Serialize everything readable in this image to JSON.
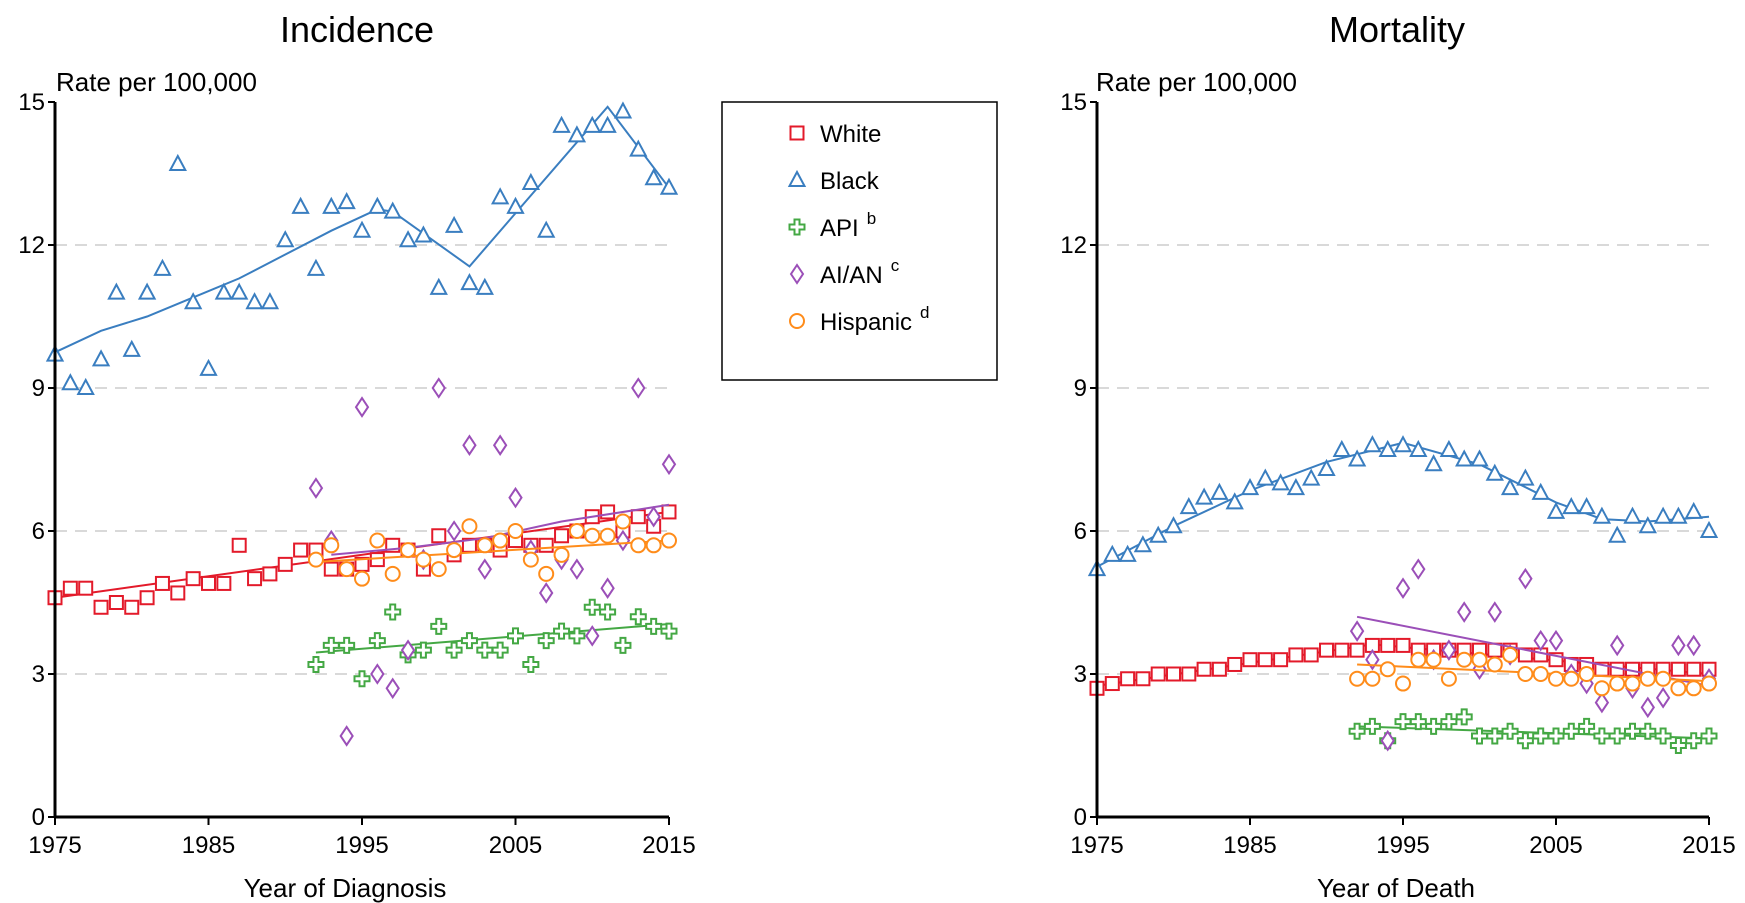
{
  "series_styles": [
    {
      "key": "white",
      "label": "White",
      "sup": "",
      "color": "#e31a2a",
      "marker": "square"
    },
    {
      "key": "black",
      "label": "Black",
      "sup": "",
      "color": "#3a7ec0",
      "marker": "triangle"
    },
    {
      "key": "api",
      "label": "API",
      "sup": "b",
      "color": "#44a844",
      "marker": "plus"
    },
    {
      "key": "aian",
      "label": "AI/AN",
      "sup": "c",
      "color": "#9b4fb8",
      "marker": "diamond"
    },
    {
      "key": "hispanic",
      "label": "Hispanic",
      "sup": "d",
      "color": "#ff8c1a",
      "marker": "circle"
    }
  ],
  "chart_data": [
    {
      "type": "scatter",
      "title": "Incidence",
      "xlabel": "Year of Diagnosis",
      "ylabel": "Rate per 100,000",
      "xlim": [
        1975,
        2015
      ],
      "ylim": [
        0,
        15
      ],
      "xticks": [
        1975,
        1985,
        1995,
        2005,
        2015
      ],
      "yticks": [
        0,
        3,
        6,
        9,
        12,
        15
      ],
      "grid": "horizontal dashed",
      "legend_position": "right",
      "series": [
        {
          "name": "White",
          "key": "white",
          "x": [
            1975,
            1976,
            1977,
            1978,
            1979,
            1980,
            1981,
            1982,
            1983,
            1984,
            1985,
            1986,
            1987,
            1988,
            1989,
            1990,
            1991,
            1992,
            1993,
            1994,
            1995,
            1996,
            1997,
            1998,
            1999,
            2000,
            2001,
            2002,
            2003,
            2004,
            2005,
            2006,
            2007,
            2008,
            2009,
            2010,
            2011,
            2012,
            2013,
            2014,
            2015
          ],
          "y": [
            4.6,
            4.8,
            4.8,
            4.4,
            4.5,
            4.4,
            4.6,
            4.9,
            4.7,
            5.0,
            4.9,
            4.9,
            5.7,
            5.0,
            5.1,
            5.3,
            5.6,
            5.6,
            5.2,
            5.2,
            5.3,
            5.4,
            5.7,
            5.6,
            5.2,
            5.9,
            5.5,
            5.7,
            5.7,
            5.6,
            5.8,
            5.7,
            5.7,
            5.9,
            6.0,
            6.3,
            6.4,
            6.0,
            6.3,
            6.1,
            6.4
          ],
          "trend": {
            "x": [
              1975,
              2015
            ],
            "y": [
              4.6,
              6.4
            ]
          }
        },
        {
          "name": "Black",
          "key": "black",
          "x": [
            1975,
            1976,
            1977,
            1978,
            1979,
            1980,
            1981,
            1982,
            1983,
            1984,
            1985,
            1986,
            1987,
            1988,
            1989,
            1990,
            1991,
            1992,
            1993,
            1994,
            1995,
            1996,
            1997,
            1998,
            1999,
            2000,
            2001,
            2002,
            2003,
            2004,
            2005,
            2006,
            2007,
            2008,
            2009,
            2010,
            2011,
            2012,
            2013,
            2014,
            2015
          ],
          "y": [
            9.7,
            9.1,
            9.0,
            9.6,
            11.0,
            9.8,
            11.0,
            11.5,
            13.7,
            10.8,
            9.4,
            11.0,
            11.0,
            10.8,
            10.8,
            12.1,
            12.8,
            11.5,
            12.8,
            12.9,
            12.3,
            12.8,
            12.7,
            12.1,
            12.2,
            11.1,
            12.4,
            11.2,
            11.1,
            13.0,
            12.8,
            13.3,
            12.3,
            14.5,
            14.3,
            14.5,
            14.5,
            14.8,
            14.0,
            13.4,
            13.2
          ],
          "trend": {
            "x": [
              1975,
              1978,
              1981,
              1984,
              1987,
              1990,
              1993,
              1996,
              1997,
              2002,
              2011,
              2015
            ],
            "y": [
              9.75,
              10.2,
              10.5,
              10.9,
              11.3,
              11.8,
              12.3,
              12.75,
              12.7,
              11.55,
              14.9,
              13.2
            ]
          }
        },
        {
          "name": "API",
          "key": "api",
          "x": [
            1992,
            1993,
            1994,
            1995,
            1996,
            1997,
            1998,
            1999,
            2000,
            2001,
            2002,
            2003,
            2004,
            2005,
            2006,
            2007,
            2008,
            2009,
            2010,
            2011,
            2012,
            2013,
            2014,
            2015
          ],
          "y": [
            3.2,
            3.6,
            3.6,
            2.9,
            3.7,
            4.3,
            3.4,
            3.5,
            4.0,
            3.5,
            3.7,
            3.5,
            3.5,
            3.8,
            3.2,
            3.7,
            3.9,
            3.8,
            4.4,
            4.3,
            3.6,
            4.2,
            4.0,
            3.9
          ],
          "trend": {
            "x": [
              1992,
              2015
            ],
            "y": [
              3.45,
              4.05
            ]
          }
        },
        {
          "name": "AI/AN",
          "key": "aian",
          "x": [
            1992,
            1993,
            1994,
            1995,
            1996,
            1997,
            1998,
            1999,
            2000,
            2001,
            2002,
            2003,
            2004,
            2005,
            2006,
            2007,
            2008,
            2009,
            2010,
            2011,
            2012,
            2013,
            2014,
            2015
          ],
          "y": [
            6.9,
            5.8,
            1.7,
            8.6,
            3.0,
            2.7,
            3.5,
            5.4,
            9.0,
            6.0,
            7.8,
            5.2,
            7.8,
            6.7,
            5.6,
            4.7,
            5.4,
            5.2,
            3.8,
            4.8,
            5.8,
            9.0,
            6.3,
            7.4
          ],
          "trend": {
            "x": [
              1993,
              1998,
              2003,
              2008,
              2015
            ],
            "y": [
              5.5,
              5.65,
              5.85,
              6.2,
              6.55
            ]
          }
        },
        {
          "name": "Hispanic",
          "key": "hispanic",
          "x": [
            1992,
            1993,
            1994,
            1995,
            1996,
            1997,
            1998,
            1999,
            2000,
            2001,
            2002,
            2003,
            2004,
            2005,
            2006,
            2007,
            2008,
            2009,
            2010,
            2011,
            2012,
            2013,
            2014,
            2015
          ],
          "y": [
            5.4,
            5.7,
            5.2,
            5.0,
            5.8,
            5.1,
            5.6,
            5.4,
            5.2,
            5.6,
            6.1,
            5.7,
            5.8,
            6.0,
            5.4,
            5.1,
            5.5,
            6.0,
            5.9,
            5.9,
            6.2,
            5.7,
            5.7,
            5.8
          ],
          "trend": {
            "x": [
              1992,
              2015
            ],
            "y": [
              5.35,
              5.8
            ]
          }
        }
      ]
    },
    {
      "type": "scatter",
      "title": "Mortality",
      "xlabel": "Year of Death",
      "ylabel": "Rate per 100,000",
      "xlim": [
        1975,
        2015
      ],
      "ylim": [
        0,
        15
      ],
      "xticks": [
        1975,
        1985,
        1995,
        2005,
        2015
      ],
      "yticks": [
        0,
        3,
        6,
        9,
        12,
        15
      ],
      "grid": "horizontal dashed",
      "series": [
        {
          "name": "White",
          "key": "white",
          "x": [
            1975,
            1976,
            1977,
            1978,
            1979,
            1980,
            1981,
            1982,
            1983,
            1984,
            1985,
            1986,
            1987,
            1988,
            1989,
            1990,
            1991,
            1992,
            1993,
            1994,
            1995,
            1996,
            1997,
            1998,
            1999,
            2000,
            2001,
            2002,
            2003,
            2004,
            2005,
            2006,
            2007,
            2008,
            2009,
            2010,
            2011,
            2012,
            2013,
            2014,
            2015
          ],
          "y": [
            2.7,
            2.8,
            2.9,
            2.9,
            3.0,
            3.0,
            3.0,
            3.1,
            3.1,
            3.2,
            3.3,
            3.3,
            3.3,
            3.4,
            3.4,
            3.5,
            3.5,
            3.5,
            3.6,
            3.6,
            3.6,
            3.5,
            3.5,
            3.5,
            3.5,
            3.5,
            3.5,
            3.5,
            3.4,
            3.4,
            3.3,
            3.2,
            3.2,
            3.1,
            3.1,
            3.1,
            3.1,
            3.1,
            3.1,
            3.1,
            3.1
          ],
          "trend": {
            "x": [
              1975,
              1993,
              2015
            ],
            "y": [
              2.75,
              3.62,
              3.0
            ]
          }
        },
        {
          "name": "Black",
          "key": "black",
          "x": [
            1975,
            1976,
            1977,
            1978,
            1979,
            1980,
            1981,
            1982,
            1983,
            1984,
            1985,
            1986,
            1987,
            1988,
            1989,
            1990,
            1991,
            1992,
            1993,
            1994,
            1995,
            1996,
            1997,
            1998,
            1999,
            2000,
            2001,
            2002,
            2003,
            2004,
            2005,
            2006,
            2007,
            2008,
            2009,
            2010,
            2011,
            2012,
            2013,
            2014,
            2015
          ],
          "y": [
            5.2,
            5.5,
            5.5,
            5.7,
            5.9,
            6.1,
            6.5,
            6.7,
            6.8,
            6.6,
            6.9,
            7.1,
            7.0,
            6.9,
            7.1,
            7.3,
            7.7,
            7.5,
            7.8,
            7.7,
            7.8,
            7.7,
            7.4,
            7.7,
            7.5,
            7.5,
            7.2,
            6.9,
            7.1,
            6.8,
            6.4,
            6.5,
            6.5,
            6.3,
            5.9,
            6.3,
            6.1,
            6.3,
            6.3,
            6.4,
            6.0
          ],
          "trend": {
            "x": [
              1975,
              1980,
              1985,
              1990,
              1995,
              2000,
              2005,
              2008,
              2011,
              2015
            ],
            "y": [
              5.25,
              6.1,
              6.85,
              7.45,
              7.85,
              7.4,
              6.6,
              6.25,
              6.2,
              6.3
            ]
          }
        },
        {
          "name": "API",
          "key": "api",
          "x": [
            1992,
            1993,
            1994,
            1995,
            1996,
            1997,
            1998,
            1999,
            2000,
            2001,
            2002,
            2003,
            2004,
            2005,
            2006,
            2007,
            2008,
            2009,
            2010,
            2011,
            2012,
            2013,
            2014,
            2015
          ],
          "y": [
            1.8,
            1.9,
            1.6,
            2.0,
            2.0,
            1.9,
            2.0,
            2.1,
            1.7,
            1.7,
            1.8,
            1.6,
            1.7,
            1.7,
            1.8,
            1.9,
            1.7,
            1.7,
            1.8,
            1.8,
            1.7,
            1.5,
            1.6,
            1.7
          ],
          "trend": {
            "x": [
              1992,
              2015
            ],
            "y": [
              1.9,
              1.65
            ]
          }
        },
        {
          "name": "AI/AN",
          "key": "aian",
          "x": [
            1992,
            1993,
            1994,
            1995,
            1996,
            1997,
            1998,
            1999,
            2000,
            2001,
            2002,
            2003,
            2004,
            2005,
            2006,
            2007,
            2008,
            2009,
            2010,
            2011,
            2012,
            2013,
            2014,
            2015
          ],
          "y": [
            3.9,
            3.3,
            1.6,
            4.8,
            5.2,
            3.3,
            3.5,
            4.3,
            3.1,
            4.3,
            3.4,
            5.0,
            3.7,
            3.7,
            3.0,
            2.8,
            2.4,
            3.6,
            2.7,
            2.3,
            2.5,
            3.6,
            3.6,
            2.9
          ],
          "trend": {
            "x": [
              1992,
              2015
            ],
            "y": [
              4.2,
              2.75
            ]
          }
        },
        {
          "name": "Hispanic",
          "key": "hispanic",
          "x": [
            1992,
            1993,
            1994,
            1995,
            1996,
            1997,
            1998,
            1999,
            2000,
            2001,
            2002,
            2003,
            2004,
            2005,
            2006,
            2007,
            2008,
            2009,
            2010,
            2011,
            2012,
            2013,
            2014,
            2015
          ],
          "y": [
            2.9,
            2.9,
            3.1,
            2.8,
            3.3,
            3.3,
            2.9,
            3.3,
            3.3,
            3.2,
            3.4,
            3.0,
            3.0,
            2.9,
            2.9,
            3.0,
            2.7,
            2.8,
            2.8,
            2.9,
            2.9,
            2.7,
            2.7,
            2.8
          ],
          "trend": {
            "x": [
              1992,
              2015
            ],
            "y": [
              3.2,
              2.85
            ]
          }
        }
      ]
    }
  ]
}
